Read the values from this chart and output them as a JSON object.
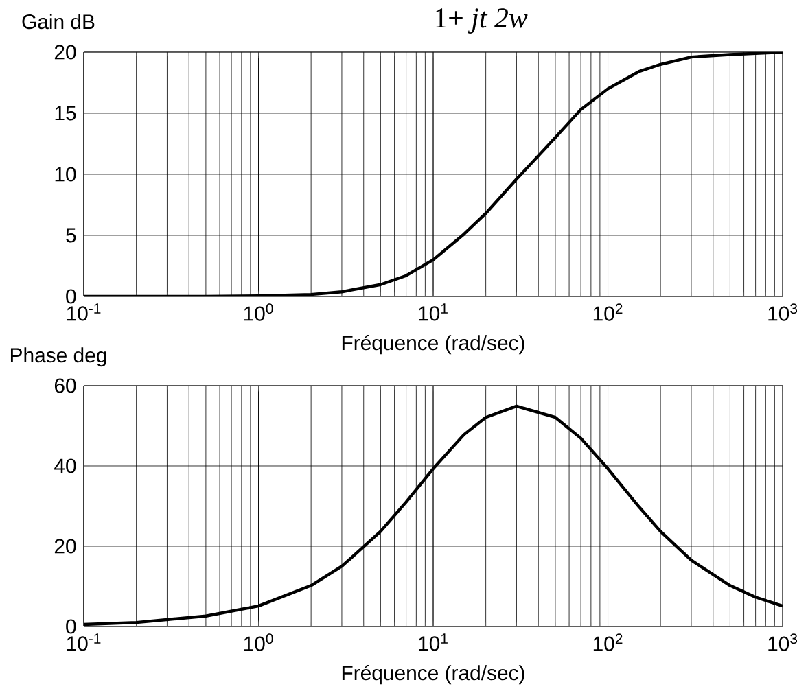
{
  "chart_data": [
    {
      "type": "line",
      "title": "1+ *jt 2w*",
      "ylabel": "Gain dB",
      "xlabel": "Fréquence (rad/sec)",
      "log": "x",
      "grid": true,
      "color": "#000000",
      "line_style": "solid",
      "marker": "none",
      "x": [
        0.1,
        0.2,
        0.5,
        1,
        2,
        3,
        5,
        7,
        10,
        15,
        20,
        30,
        50,
        70,
        100,
        150,
        200,
        300,
        500,
        700,
        1000
      ],
      "values": [
        0,
        0,
        0,
        0.04,
        0.16,
        0.38,
        0.97,
        1.7,
        3.0,
        5.1,
        6.8,
        9.6,
        13.0,
        15.3,
        17.0,
        18.4,
        19.0,
        19.6,
        19.8,
        19.9,
        20.0
      ],
      "xlim": [
        0.1,
        1000
      ],
      "ylim": [
        0,
        20
      ],
      "xticks": [
        {
          "value": 0.1,
          "label": "10$^{-1}$"
        },
        {
          "value": 1,
          "label": "10$^{0}$"
        },
        {
          "value": 10,
          "label": "10$^{1}$"
        },
        {
          "value": 100,
          "label": "10$^{2}$"
        },
        {
          "value": 1000,
          "label": "10$^{3}$"
        }
      ],
      "yticks": [
        0,
        5,
        10,
        15,
        20
      ]
    },
    {
      "type": "line",
      "ylabel": "Phase deg",
      "xlabel": "Fréquence (rad/sec)",
      "log": "x",
      "grid": true,
      "color": "#000000",
      "line_style": "solid",
      "marker": "none",
      "x": [
        0.1,
        0.2,
        0.5,
        1,
        2,
        3,
        5,
        7,
        10,
        15,
        20,
        30,
        50,
        70,
        100,
        150,
        200,
        300,
        500,
        700,
        1000
      ],
      "values": [
        0.5,
        1.0,
        2.6,
        5.1,
        10.2,
        15.0,
        23.7,
        31.0,
        39.3,
        47.8,
        52.1,
        54.9,
        52.1,
        46.9,
        39.3,
        29.9,
        23.7,
        16.5,
        10.2,
        7.3,
        5.1
      ],
      "xlim": [
        0.1,
        1000
      ],
      "ylim": [
        0,
        60
      ],
      "xticks": [
        {
          "value": 0.1,
          "label": "10$^{-1}$"
        },
        {
          "value": 1,
          "label": "10$^{0}$"
        },
        {
          "value": 10,
          "label": "10$^{1}$"
        },
        {
          "value": 100,
          "label": "10$^{2}$"
        },
        {
          "value": 1000,
          "label": "10$^{3}$"
        }
      ],
      "yticks": [
        0,
        20,
        40,
        60
      ]
    }
  ]
}
